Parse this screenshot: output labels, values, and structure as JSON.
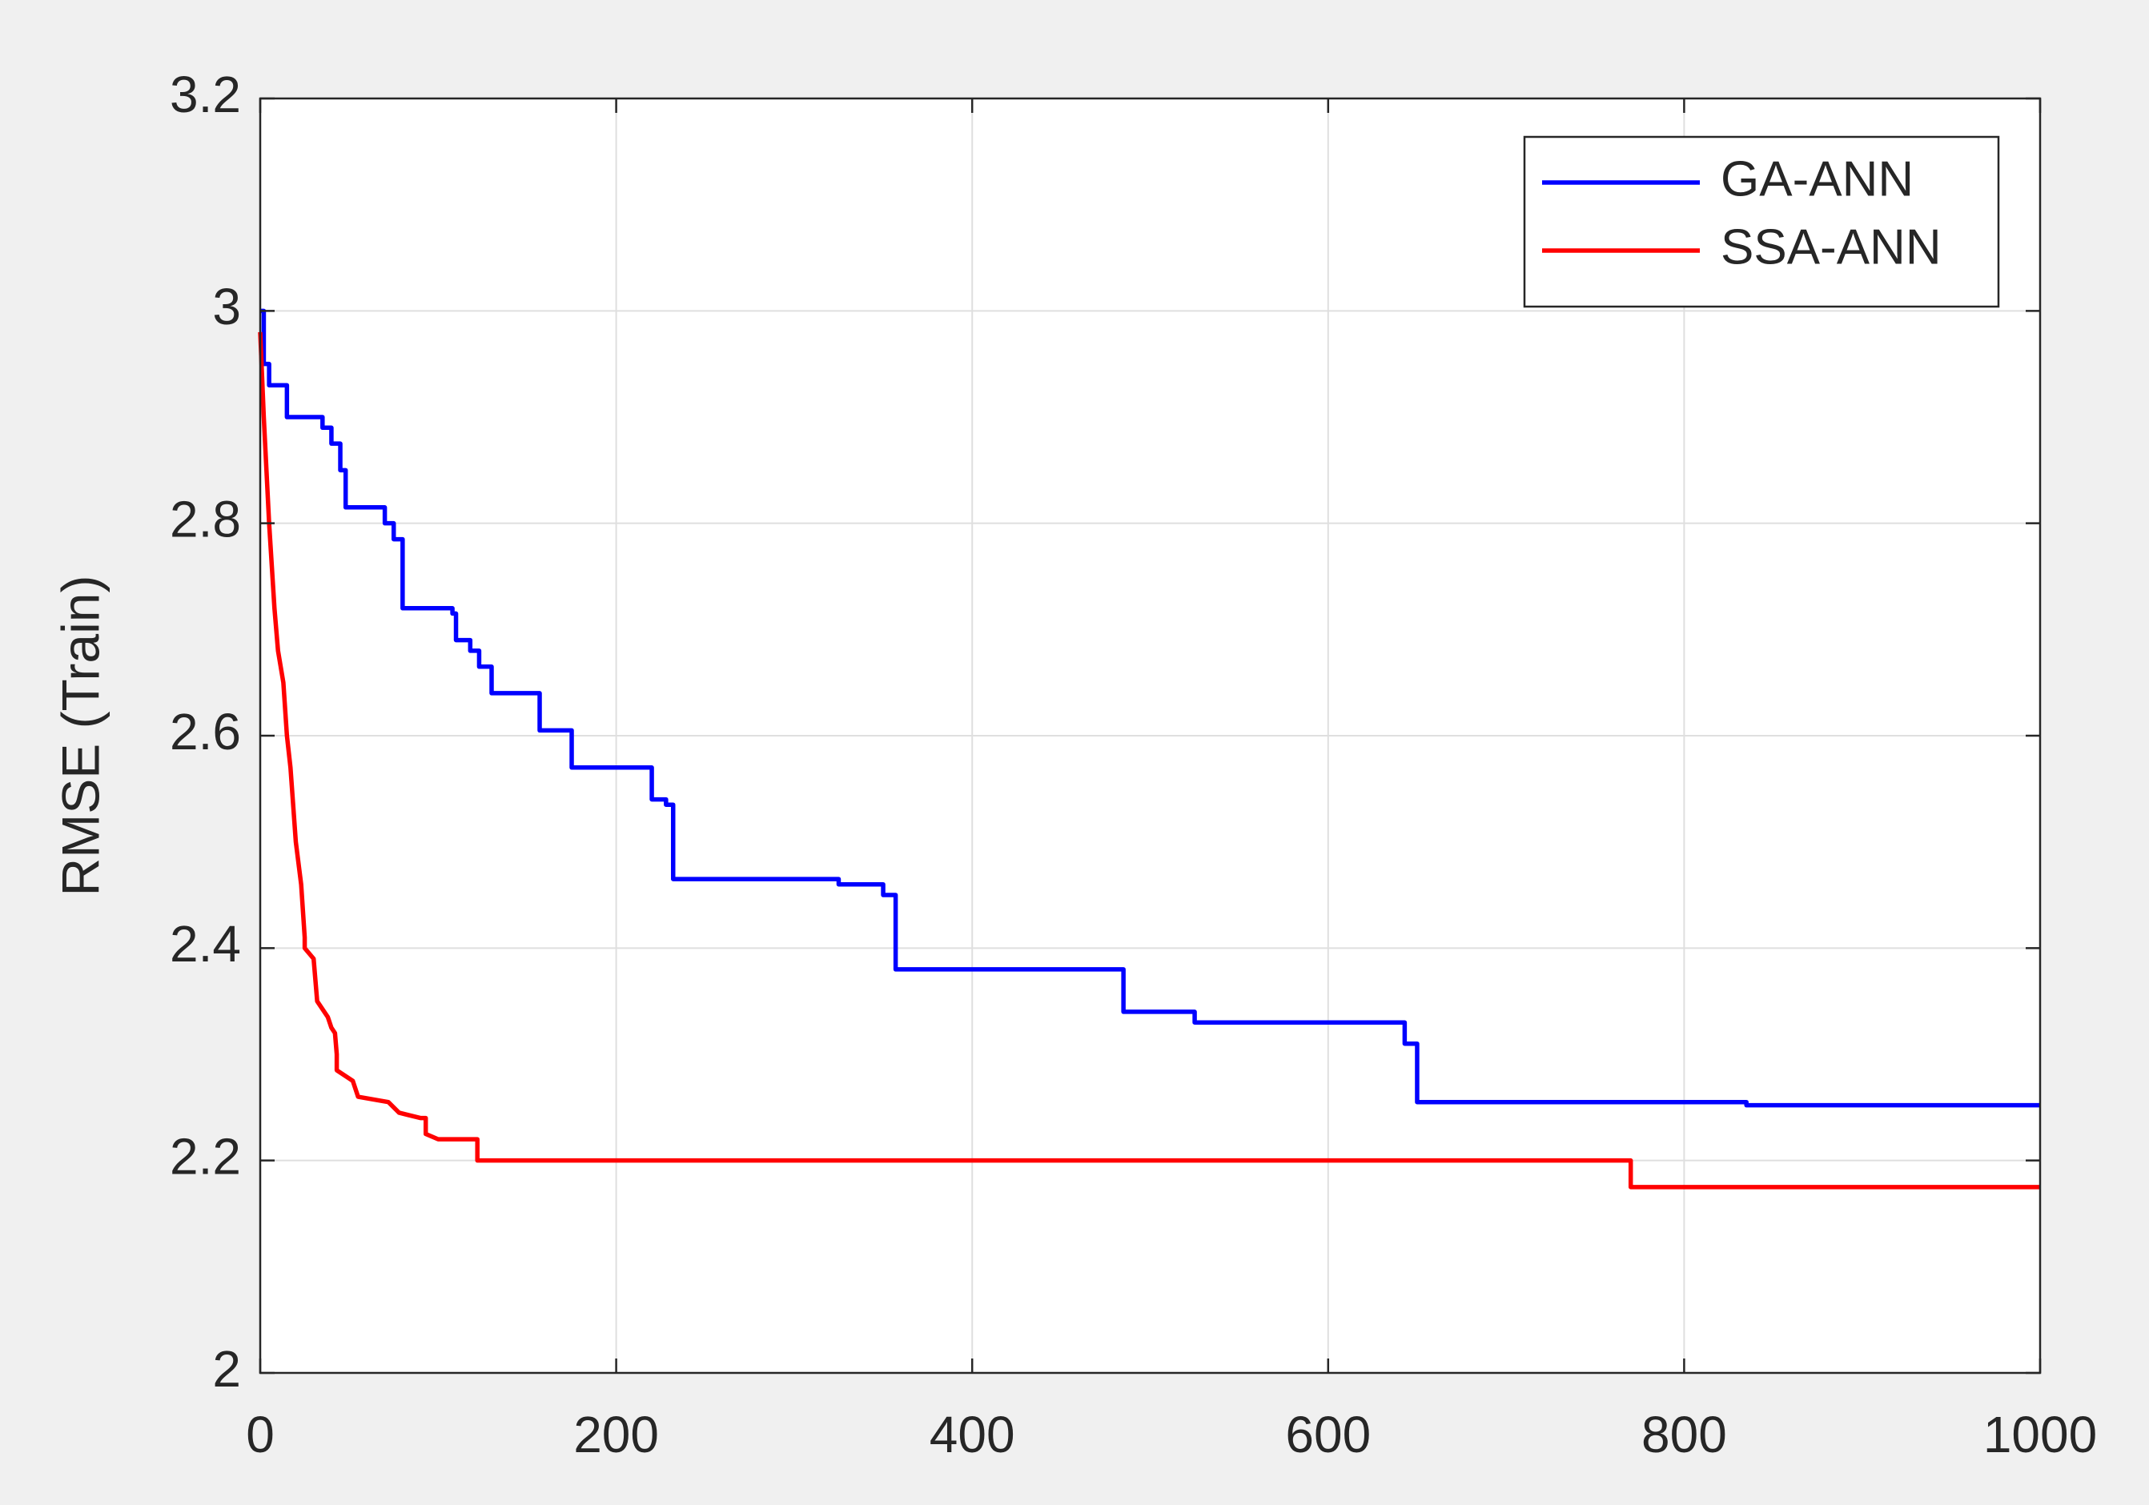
{
  "chart_data": {
    "type": "line",
    "y_label": "RMSE (Train)",
    "xlim": [
      0,
      1000
    ],
    "ylim": [
      2,
      3.2
    ],
    "xticks": [
      0,
      200,
      400,
      600,
      800,
      1000
    ],
    "yticks": [
      2,
      2.2,
      2.4,
      2.6,
      2.8,
      3,
      3.2
    ],
    "grid": true,
    "legend": "upper right",
    "series": [
      {
        "name": "GA-ANN",
        "color": "#0000ff",
        "x": [
          0,
          2,
          2,
          5,
          5,
          15,
          15,
          35,
          35,
          40,
          40,
          45,
          45,
          48,
          48,
          70,
          70,
          75,
          75,
          80,
          80,
          108,
          108,
          110,
          110,
          118,
          118,
          123,
          123,
          130,
          130,
          157,
          157,
          175,
          175,
          220,
          220,
          228,
          228,
          232,
          232,
          325,
          325,
          350,
          350,
          357,
          357,
          485,
          485,
          525,
          525,
          643,
          643,
          650,
          650,
          835,
          835,
          1000
        ],
        "values": [
          3.0,
          3.0,
          2.95,
          2.95,
          2.93,
          2.93,
          2.9,
          2.9,
          2.89,
          2.89,
          2.875,
          2.875,
          2.85,
          2.85,
          2.815,
          2.815,
          2.8,
          2.8,
          2.785,
          2.785,
          2.72,
          2.72,
          2.715,
          2.715,
          2.69,
          2.69,
          2.68,
          2.68,
          2.665,
          2.665,
          2.64,
          2.64,
          2.605,
          2.605,
          2.57,
          2.57,
          2.54,
          2.54,
          2.535,
          2.535,
          2.465,
          2.465,
          2.46,
          2.46,
          2.45,
          2.45,
          2.38,
          2.38,
          2.34,
          2.34,
          2.33,
          2.33,
          2.31,
          2.31,
          2.255,
          2.255,
          2.252,
          2.252
        ]
      },
      {
        "name": "SSA-ANN",
        "color": "#ff0000",
        "x": [
          0,
          2,
          5,
          8,
          10,
          13,
          15,
          17,
          20,
          23,
          25,
          25,
          30,
          32,
          38,
          40,
          42,
          43,
          43,
          52,
          55,
          72,
          78,
          78,
          90,
          93,
          93,
          100,
          100,
          122,
          122,
          770,
          770,
          1000
        ],
        "values": [
          2.98,
          2.9,
          2.8,
          2.72,
          2.68,
          2.65,
          2.6,
          2.57,
          2.5,
          2.46,
          2.41,
          2.4,
          2.39,
          2.35,
          2.335,
          2.325,
          2.32,
          2.3,
          2.285,
          2.275,
          2.26,
          2.255,
          2.245,
          2.245,
          2.24,
          2.24,
          2.225,
          2.22,
          2.22,
          2.22,
          2.2,
          2.2,
          2.175,
          2.175
        ]
      }
    ]
  }
}
